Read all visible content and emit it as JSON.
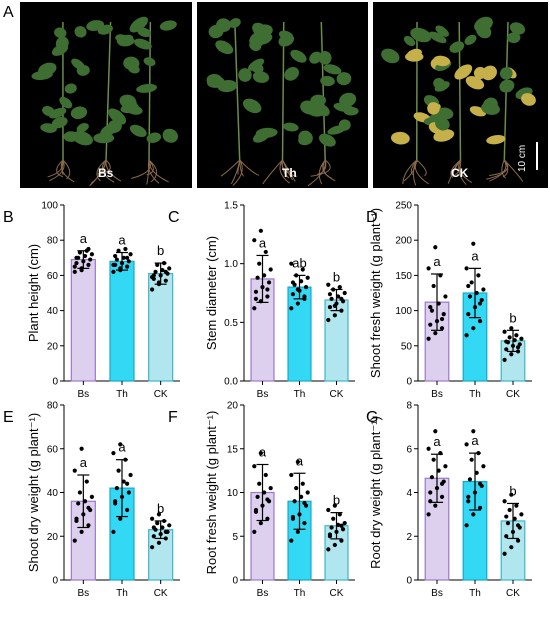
{
  "panel_a": {
    "letter": "A",
    "photos": [
      {
        "label": "Bs"
      },
      {
        "label": "Th"
      },
      {
        "label": "CK"
      }
    ],
    "scale_bar": "10 cm"
  },
  "colors": {
    "Bs_fill": "#ddd0ee",
    "Bs_edge": "#9b78c9",
    "Th_fill": "#33d9f4",
    "Th_edge": "#16a8c8",
    "CK_fill": "#b2e6ef",
    "CK_edge": "#3bb6c6",
    "photo_bg": "#000000",
    "leaf": "#3f6e32",
    "leaf_yellow": "#c6b04a",
    "root": "#8a6a4a"
  },
  "chart_data": [
    {
      "panel": "B",
      "type": "bar",
      "categories": [
        "Bs",
        "Th",
        "CK"
      ],
      "values": [
        69,
        68,
        61
      ],
      "errors": [
        5,
        5,
        6
      ],
      "letters": [
        "a",
        "a",
        "b"
      ],
      "ylabel": "Plant height (cm)",
      "ylim": [
        0,
        100
      ],
      "yticks": [
        "0",
        "20",
        "40",
        "60",
        "80",
        "100"
      ],
      "points": [
        [
          62,
          64,
          66,
          67,
          68,
          69,
          70,
          71,
          72,
          73,
          74,
          65,
          63,
          75,
          70
        ],
        [
          62,
          64,
          65,
          66,
          67,
          68,
          69,
          70,
          72,
          74,
          75,
          66,
          63,
          70,
          71
        ],
        [
          52,
          55,
          57,
          58,
          60,
          61,
          62,
          63,
          64,
          66,
          67,
          59,
          56,
          62,
          60
        ]
      ]
    },
    {
      "panel": "C",
      "type": "bar",
      "categories": [
        "Bs",
        "Th",
        "CK"
      ],
      "values": [
        0.87,
        0.8,
        0.69
      ],
      "errors": [
        0.2,
        0.1,
        0.09
      ],
      "letters": [
        "a",
        "ab",
        "b"
      ],
      "ylabel": "Stem diameter (cm)",
      "ylim": [
        0,
        1.5
      ],
      "yticks": [
        "0.0",
        "0.5",
        "1.0",
        "1.5"
      ],
      "points": [
        [
          0.62,
          0.68,
          0.72,
          0.76,
          0.8,
          0.84,
          0.88,
          0.9,
          0.95,
          1.0,
          1.1,
          1.2,
          1.28,
          0.78,
          0.7
        ],
        [
          0.62,
          0.66,
          0.7,
          0.74,
          0.77,
          0.8,
          0.82,
          0.85,
          0.88,
          0.9,
          0.95,
          1.0,
          0.78,
          0.72,
          0.84
        ],
        [
          0.52,
          0.56,
          0.6,
          0.63,
          0.66,
          0.68,
          0.7,
          0.72,
          0.75,
          0.78,
          0.8,
          0.82,
          0.64,
          0.7,
          0.74
        ]
      ]
    },
    {
      "panel": "D",
      "type": "bar",
      "categories": [
        "Bs",
        "Th",
        "CK"
      ],
      "values": [
        112,
        125,
        57
      ],
      "errors": [
        40,
        35,
        15
      ],
      "letters": [
        "a",
        "a",
        "b"
      ],
      "ylabel": "Shoot fresh weight (g plant⁻¹)",
      "ylim": [
        0,
        250
      ],
      "yticks": [
        "0",
        "50",
        "100",
        "150",
        "200",
        "250"
      ],
      "points": [
        [
          60,
          68,
          75,
          80,
          85,
          95,
          100,
          110,
          120,
          135,
          150,
          160,
          190,
          88,
          105
        ],
        [
          65,
          75,
          85,
          95,
          105,
          115,
          120,
          125,
          130,
          140,
          150,
          160,
          195,
          110,
          135
        ],
        [
          30,
          38,
          42,
          45,
          50,
          52,
          55,
          58,
          60,
          62,
          65,
          70,
          75,
          48,
          56
        ]
      ]
    },
    {
      "panel": "E",
      "type": "bar",
      "categories": [
        "Bs",
        "Th",
        "CK"
      ],
      "values": [
        36,
        42,
        23
      ],
      "errors": [
        12,
        13,
        4
      ],
      "letters": [
        "a",
        "a",
        "b"
      ],
      "ylabel": "Shoot dry weight (g  plant⁻¹)",
      "ylim": [
        0,
        80
      ],
      "yticks": [
        "0",
        "20",
        "40",
        "60",
        "80"
      ],
      "points": [
        [
          18,
          22,
          25,
          28,
          30,
          32,
          35,
          36,
          38,
          40,
          45,
          50,
          60,
          33,
          27
        ],
        [
          22,
          28,
          32,
          35,
          38,
          40,
          42,
          45,
          48,
          50,
          55,
          58,
          62,
          44,
          36
        ],
        [
          15,
          17,
          19,
          20,
          21,
          22,
          23,
          24,
          25,
          26,
          27,
          28,
          30,
          22,
          24
        ]
      ]
    },
    {
      "panel": "F",
      "type": "bar",
      "categories": [
        "Bs",
        "Th",
        "CK"
      ],
      "values": [
        10,
        9,
        6.2
      ],
      "errors": [
        3.2,
        3.2,
        1.5
      ],
      "letters": [
        "a",
        "a",
        "b"
      ],
      "ylabel": "Root fresh weight (g plant⁻¹)",
      "ylim": [
        0,
        20
      ],
      "yticks": [
        "0",
        "5",
        "10",
        "15",
        "20"
      ],
      "points": [
        [
          5.5,
          6.5,
          7,
          8,
          8.5,
          9,
          9.5,
          10,
          10.5,
          11,
          12,
          13,
          14.5,
          9.2,
          7.8
        ],
        [
          4.5,
          5.5,
          6.5,
          7,
          7.5,
          8.5,
          9,
          9.5,
          10,
          10.5,
          11,
          12,
          13.5,
          8.8,
          7.2
        ],
        [
          3.5,
          4,
          4.5,
          5,
          5.5,
          5.8,
          6,
          6.3,
          6.5,
          7,
          7.5,
          8,
          8.5,
          6.2,
          5.2
        ]
      ]
    },
    {
      "panel": "G",
      "type": "bar",
      "categories": [
        "Bs",
        "Th",
        "CK"
      ],
      "values": [
        4.65,
        4.5,
        2.7
      ],
      "errors": [
        1.1,
        1.3,
        0.8
      ],
      "letters": [
        "a",
        "a",
        "b"
      ],
      "ylabel": "Root dry weight (g  plant⁻¹)",
      "ylim": [
        0,
        8
      ],
      "yticks": [
        "0",
        "2",
        "4",
        "6",
        "8"
      ],
      "points": [
        [
          3,
          3.4,
          3.8,
          4,
          4.2,
          4.5,
          4.7,
          5,
          5.2,
          5.5,
          5.8,
          6,
          6.8,
          4.4,
          3.6
        ],
        [
          2.5,
          3,
          3.3,
          3.6,
          4,
          4.3,
          4.6,
          4.9,
          5.2,
          5.5,
          5.8,
          6.2,
          6.8,
          4.4,
          3.8
        ],
        [
          1.2,
          1.5,
          1.8,
          2,
          2.2,
          2.4,
          2.6,
          2.8,
          3,
          3.2,
          3.4,
          3.6,
          3.9,
          2.5,
          2.9
        ]
      ]
    }
  ]
}
